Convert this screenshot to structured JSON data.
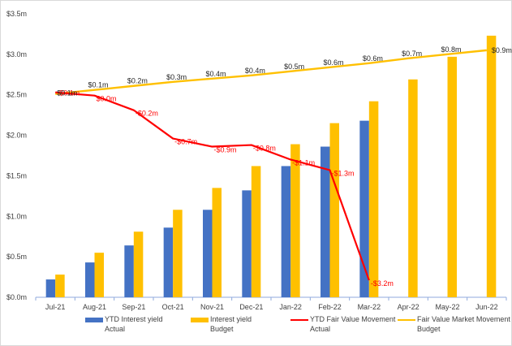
{
  "chart_data": {
    "type": "bar",
    "title": "",
    "xlabel": "",
    "ylabel": "",
    "ylim": [
      0,
      3.5
    ],
    "yticks": [
      0,
      0.5,
      1.0,
      1.5,
      2.0,
      2.5,
      3.0,
      3.5
    ],
    "ytick_labels": [
      "$0.0m",
      "$0.5m",
      "$1.0m",
      "$1.5m",
      "$2.0m",
      "$2.5m",
      "$3.0m",
      "$3.5m"
    ],
    "grid": false,
    "legend_position": "bottom",
    "categories": [
      "Jul-21",
      "Aug-21",
      "Sep-21",
      "Oct-21",
      "Nov-21",
      "Dec-21",
      "Jan-22",
      "Feb-22",
      "Mar-22",
      "Apr-22",
      "May-22",
      "Jun-22"
    ],
    "series": [
      {
        "name": "YTD Interest yield Actual",
        "legend_lines": [
          "YTD Interest yield",
          "Actual"
        ],
        "kind": "bar",
        "color": "#4472C4",
        "values": [
          0.22,
          0.43,
          0.64,
          0.86,
          1.08,
          1.32,
          1.62,
          1.86,
          2.18,
          null,
          null,
          null
        ]
      },
      {
        "name": "Interest yield Budget",
        "legend_lines": [
          "Interest yield",
          "Budget"
        ],
        "kind": "bar",
        "color": "#FFC000",
        "values": [
          0.28,
          0.55,
          0.81,
          1.08,
          1.35,
          1.62,
          1.89,
          2.15,
          2.42,
          2.69,
          2.97,
          3.23
        ]
      },
      {
        "name": "YTD Fair Value Movement Actual",
        "legend_lines": [
          "YTD Fair Value Movement",
          "Actual"
        ],
        "kind": "line",
        "color": "#FF0000",
        "values": [
          2.53,
          2.49,
          2.31,
          1.96,
          1.86,
          1.88,
          1.7,
          1.57,
          0.21,
          null,
          null,
          null
        ],
        "data_labels": [
          "-$0.1m",
          "$0.0m",
          "-$0.2m",
          "-$0.7m",
          "-$0.9m",
          "-$0.8m",
          "-$1.1m",
          "-$1.3m",
          "-$3.2m",
          null,
          null,
          null
        ]
      },
      {
        "name": "Fair Value Market Movement Budget",
        "legend_lines": [
          "Fair Value Market Movement",
          "Budget"
        ],
        "kind": "line",
        "color": "#FFC000",
        "values": [
          2.51,
          2.56,
          2.61,
          2.66,
          2.7,
          2.74,
          2.79,
          2.84,
          2.89,
          2.95,
          3.0,
          3.05
        ],
        "data_labels": [
          "$0.1m",
          "$0.1m",
          "$0.2m",
          "$0.3m",
          "$0.4m",
          "$0.4m",
          "$0.5m",
          "$0.6m",
          "$0.6m",
          "$0.7m",
          "$0.8m",
          "$0.9m"
        ]
      }
    ]
  }
}
